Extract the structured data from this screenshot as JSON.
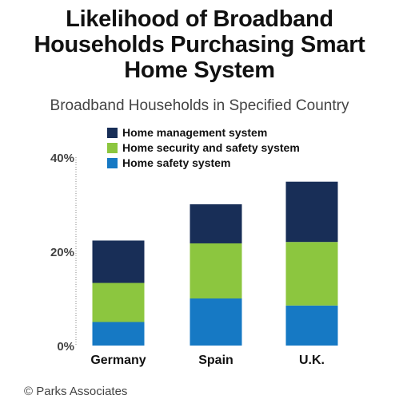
{
  "header": {
    "title_lines": [
      "Likelihood of Broadband",
      "Households Purchasing Smart",
      "Home System"
    ],
    "subtitle": "Broadband Households in Specified Country"
  },
  "footer": {
    "credit": "© Parks Associates"
  },
  "chart_data": {
    "type": "bar",
    "stacked": true,
    "categories": [
      "Germany",
      "Spain",
      "U.K."
    ],
    "series": [
      {
        "name": "Home safety system",
        "color": "#1679C4",
        "values": [
          5,
          10,
          8.5
        ]
      },
      {
        "name": "Home security and safety system",
        "color": "#8CC63F",
        "values": [
          8.3,
          11.7,
          13.5
        ]
      },
      {
        "name": "Home management system",
        "color": "#182E57",
        "values": [
          9,
          8.3,
          12.8
        ]
      }
    ],
    "legend_order": [
      "Home management system",
      "Home security and safety system",
      "Home safety system"
    ],
    "legend_position": "top-left",
    "ylim": [
      0,
      40
    ],
    "yticks": [
      0,
      20,
      40
    ],
    "ytick_labels": [
      "0%",
      "20%",
      "40%"
    ],
    "grid": false,
    "xlabel": "",
    "ylabel": ""
  }
}
